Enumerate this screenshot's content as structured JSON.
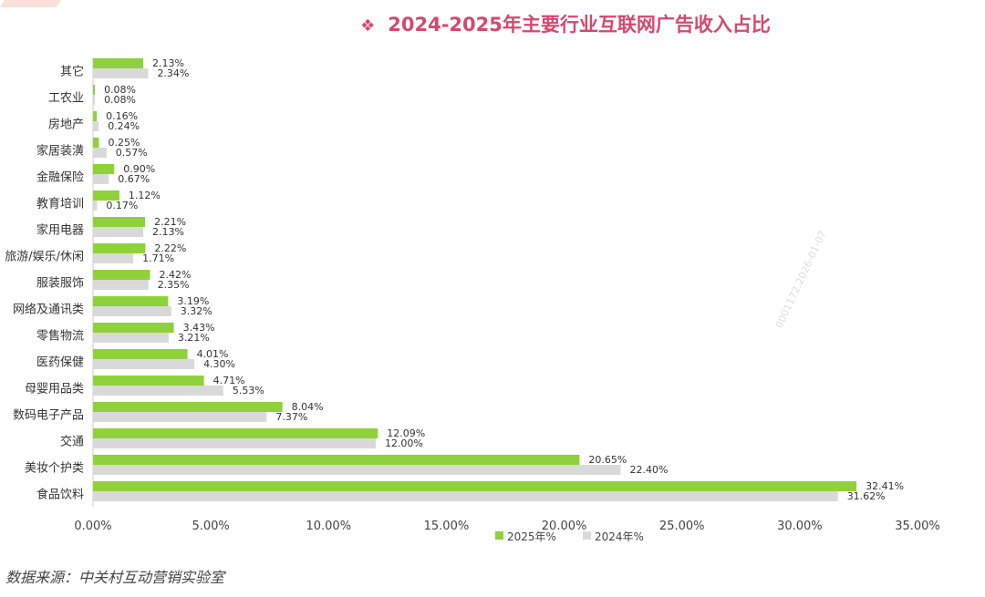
{
  "title": "2024-2025年主要行业互联网广告收入占比",
  "title_bullet": "❖",
  "source": "数据来源：中关村互动营销实验室",
  "watermark": "0001172.2026-01-07",
  "colors": {
    "series_2025": "#8fd13a",
    "series_2024": "#d9d9d9",
    "title": "#d6476e"
  },
  "chart_data": {
    "type": "bar",
    "orientation": "horizontal",
    "title": "2024-2025年主要行业互联网广告收入占比",
    "categories": [
      "其它",
      "工农业",
      "房地产",
      "家居装潢",
      "金融保险",
      "教育培训",
      "家用电器",
      "旅游/娱乐/休闲",
      "服装服饰",
      "网络及通讯类",
      "零售物流",
      "医药保健",
      "母婴用品类",
      "数码电子产品",
      "交通",
      "美妆个护类",
      "食品饮料"
    ],
    "series": [
      {
        "name": "2025年%",
        "color": "#8fd13a",
        "values": [
          2.13,
          0.08,
          0.16,
          0.25,
          0.9,
          1.12,
          2.21,
          2.22,
          2.42,
          3.19,
          3.43,
          4.01,
          4.71,
          8.04,
          12.09,
          20.65,
          32.41
        ],
        "labels": [
          "2.13%",
          "0.08%",
          "0.16%",
          "0.25%",
          "0.90%",
          "1.12%",
          "2.21%",
          "2.22%",
          "2.42%",
          "3.19%",
          "3.43%",
          "4.01%",
          "4.71%",
          "8.04%",
          "12.09%",
          "20.65%",
          "32.41%"
        ]
      },
      {
        "name": "2024年%",
        "color": "#d9d9d9",
        "values": [
          2.34,
          0.08,
          0.24,
          0.57,
          0.67,
          0.17,
          2.13,
          1.71,
          2.35,
          3.32,
          3.21,
          4.3,
          5.53,
          7.37,
          12.0,
          22.4,
          31.62
        ],
        "labels": [
          "2.34%",
          "0.08%",
          "0.24%",
          "0.57%",
          "0.67%",
          "0.17%",
          "2.13%",
          "1.71%",
          "2.35%",
          "3.32%",
          "3.21%",
          "4.30%",
          "5.53%",
          "7.37%",
          "12.00%",
          "22.40%",
          "31.62%"
        ]
      }
    ],
    "xlim": [
      0,
      35
    ],
    "xticks": [
      "0.00%",
      "5.00%",
      "10.00%",
      "15.00%",
      "20.00%",
      "25.00%",
      "30.00%",
      "35.00%"
    ],
    "legend": "bottom",
    "grid": false
  }
}
